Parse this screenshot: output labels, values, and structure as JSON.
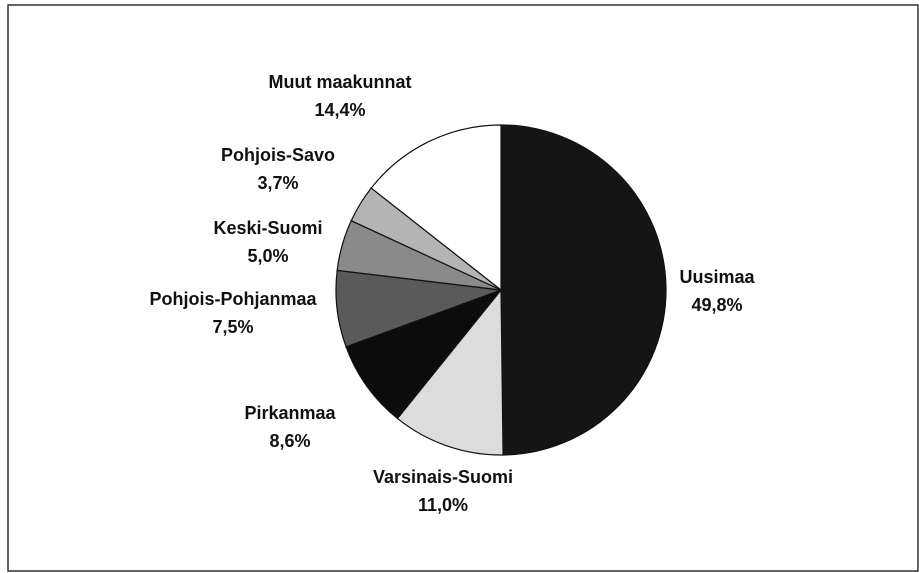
{
  "chart_data": {
    "type": "pie",
    "categories": [
      "Uusimaa",
      "Varsinais-Suomi",
      "Pirkanmaa",
      "Pohjois-Pohjanmaa",
      "Keski-Suomi",
      "Pohjois-Savo",
      "Muut maakunnat"
    ],
    "values": [
      49.8,
      11.0,
      8.6,
      7.5,
      5.0,
      3.7,
      14.4
    ],
    "value_labels": [
      "49,8%",
      "11,0%",
      "8,6%",
      "7,5%",
      "5,0%",
      "3,7%",
      "14,4%"
    ],
    "colors": [
      "#151515",
      "#dcdcdc",
      "#0c0c0c",
      "#5a5a5a",
      "#8a8a8a",
      "#b4b4b4",
      "#ffffff"
    ]
  }
}
